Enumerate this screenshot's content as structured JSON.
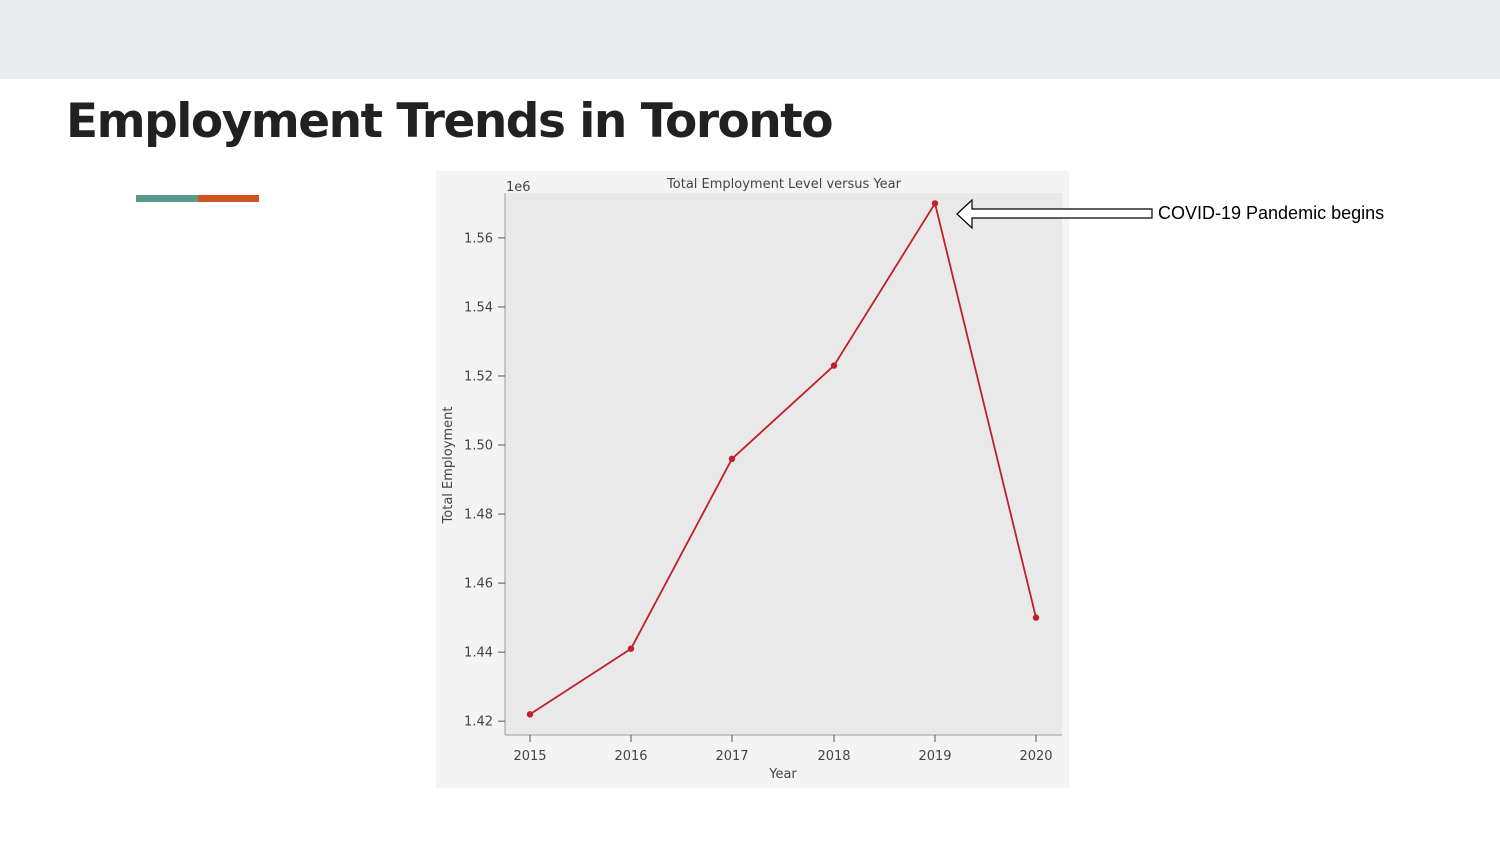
{
  "slide": {
    "title": "Employment Trends in Toronto",
    "accent_colors": [
      "#5b9a8b",
      "#d0541e"
    ],
    "top_band_color": "#ebecee"
  },
  "annotation": {
    "text": "COVID-19 Pandemic begins",
    "icon": "left-arrow-icon",
    "points_to_year": 2019
  },
  "chart_data": {
    "type": "line",
    "title": "Total Employment Level versus Year",
    "xlabel": "Year",
    "ylabel": "Total Employment",
    "y_offset_label": "1e6",
    "x": [
      2015,
      2016,
      2017,
      2018,
      2019,
      2020
    ],
    "series": [
      {
        "values": [
          1422000,
          1441000,
          1496000,
          1523000,
          1570000,
          1450000
        ],
        "color": "#c0202a"
      }
    ],
    "xticks": [
      "2015",
      "2016",
      "2017",
      "2018",
      "2019",
      "2020"
    ],
    "yticks": [
      "1.42",
      "1.44",
      "1.46",
      "1.48",
      "1.50",
      "1.52",
      "1.54",
      "1.56"
    ],
    "ylim": [
      1416000,
      1573000
    ],
    "grid": false,
    "background": "#e9e9e9",
    "outer_background": "#f4f4f4"
  }
}
